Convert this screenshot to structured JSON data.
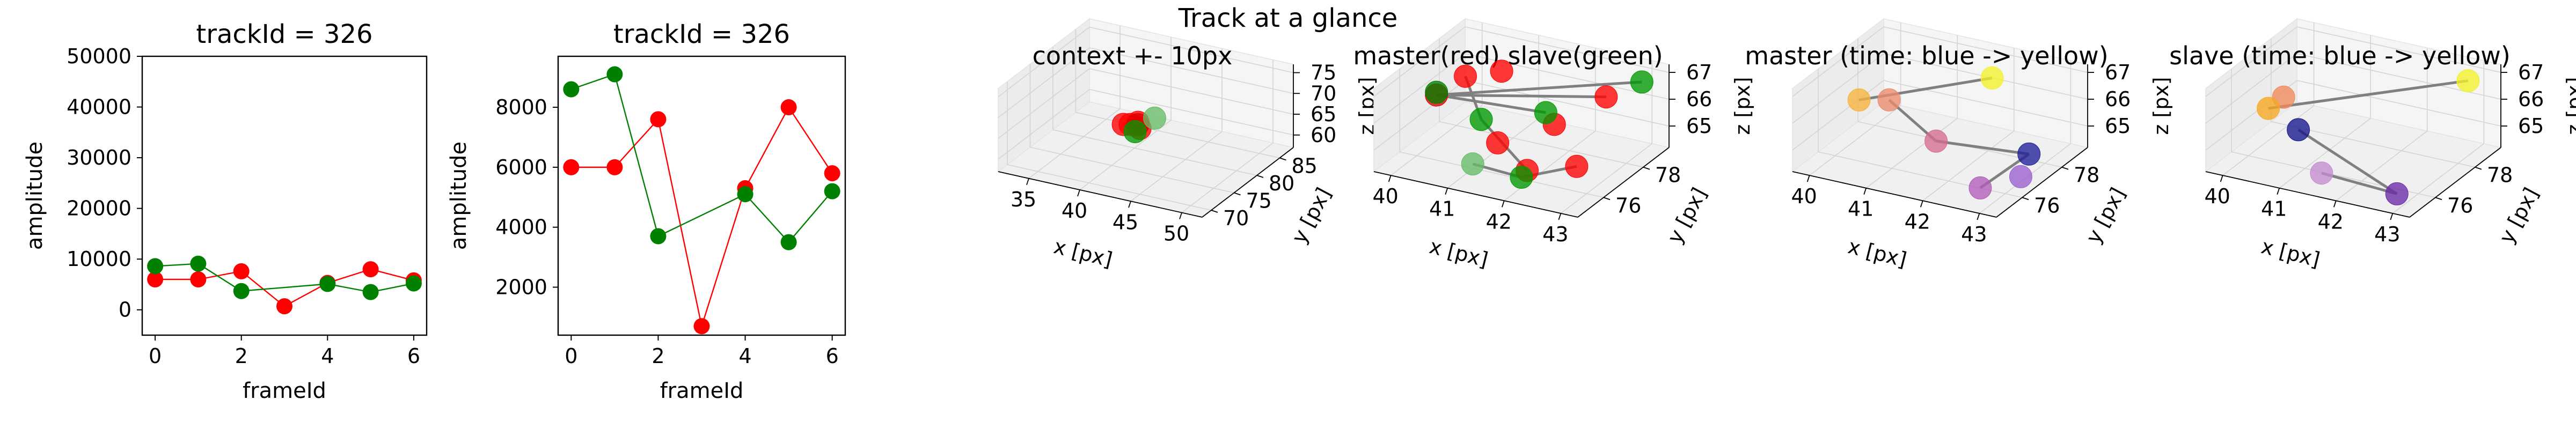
{
  "figure": {
    "title": "Track at a glance"
  },
  "chart_data": [
    {
      "type": "line",
      "title": "trackId = 326",
      "xlabel": "frameId",
      "ylabel": "amplitude",
      "xlim": [
        -0.3,
        6.3
      ],
      "ylim": [
        -5000,
        50000
      ],
      "xticks": [
        0,
        2,
        4,
        6
      ],
      "yticks": [
        0,
        10000,
        20000,
        30000,
        40000,
        50000
      ],
      "grid": false,
      "series": [
        {
          "color": "#ff0000",
          "x": [
            0,
            1,
            2,
            3,
            4,
            5,
            6
          ],
          "y": [
            6000,
            6000,
            7600,
            700,
            5300,
            8000,
            5800
          ]
        },
        {
          "color": "#008000",
          "x": [
            0,
            1,
            2,
            4,
            5,
            6
          ],
          "y": [
            8600,
            9100,
            3700,
            5100,
            3500,
            5200
          ]
        }
      ]
    },
    {
      "type": "line",
      "title": "trackId = 326",
      "xlabel": "frameId",
      "ylabel": "amplitude",
      "xlim": [
        -0.3,
        6.3
      ],
      "ylim": [
        400,
        9700
      ],
      "xticks": [
        0,
        2,
        4,
        6
      ],
      "yticks": [
        2000,
        4000,
        6000,
        8000
      ],
      "grid": false,
      "series": [
        {
          "color": "#ff0000",
          "x": [
            0,
            1,
            2,
            3,
            4,
            5,
            6
          ],
          "y": [
            6000,
            6000,
            7600,
            700,
            5300,
            8000,
            5800
          ]
        },
        {
          "color": "#008000",
          "x": [
            0,
            1,
            2,
            4,
            5,
            6
          ],
          "y": [
            8600,
            9100,
            3700,
            5100,
            3500,
            5200
          ]
        }
      ]
    },
    {
      "type": "scatter",
      "projection": "3d",
      "title": "context +- 10px",
      "xlabel": "x [px]",
      "ylabel": "y [px]",
      "zlabel": "z [px]",
      "xlim": [
        32,
        52
      ],
      "ylim": [
        68,
        88
      ],
      "zlim": [
        57,
        77
      ],
      "xticks": [
        35,
        40,
        45,
        50
      ],
      "yticks": [
        70,
        75,
        80,
        85
      ],
      "zticks": [
        60,
        65,
        70,
        75
      ],
      "points": [
        {
          "x": 40.6,
          "y": 76.2,
          "z": 66.2,
          "color": "#ff0000"
        },
        {
          "x": 41.0,
          "y": 76.8,
          "z": 65.9,
          "color": "#ff0000"
        },
        {
          "x": 41.6,
          "y": 77.2,
          "z": 66.4,
          "color": "#ff0000"
        },
        {
          "x": 42.1,
          "y": 76.5,
          "z": 65.8,
          "color": "#ff0000"
        },
        {
          "x": 41.4,
          "y": 77.6,
          "z": 65.4,
          "color": "#dd0000"
        },
        {
          "x": 42.6,
          "y": 78.6,
          "z": 66.8,
          "color": "#66bb66"
        },
        {
          "x": 41.8,
          "y": 76.1,
          "z": 65.2,
          "color": "#009900"
        }
      ],
      "segments": [
        [
          {
            "x": 40.6,
            "y": 76.2,
            "z": 66.2
          },
          {
            "x": 41.6,
            "y": 77.2,
            "z": 66.4
          }
        ],
        [
          {
            "x": 41.6,
            "y": 77.2,
            "z": 66.4
          },
          {
            "x": 41.0,
            "y": 76.8,
            "z": 65.9
          }
        ],
        [
          {
            "x": 41.0,
            "y": 76.8,
            "z": 65.9
          },
          {
            "x": 42.1,
            "y": 76.5,
            "z": 65.8
          }
        ]
      ]
    },
    {
      "type": "scatter",
      "projection": "3d",
      "title": "master(red) slave(green)",
      "xlabel": "x [px]",
      "ylabel": "y [px]",
      "zlabel": "z [px]",
      "xlim": [
        39.7,
        43.3
      ],
      "ylim": [
        74.7,
        79.3
      ],
      "zlim": [
        64.2,
        67.3
      ],
      "xticks": [
        40,
        41,
        42,
        43
      ],
      "yticks": [
        76,
        78
      ],
      "zticks": [
        65,
        66,
        67
      ],
      "points": [
        {
          "x": 40.3,
          "y": 77.6,
          "z": 66.4,
          "color": "#ff0000"
        },
        {
          "x": 40.8,
          "y": 78.0,
          "z": 66.6,
          "color": "#ff0000"
        },
        {
          "x": 42.4,
          "y": 78.7,
          "z": 66.0,
          "color": "#ff0000"
        },
        {
          "x": 41.5,
          "y": 75.8,
          "z": 65.5,
          "color": "#ff0000"
        },
        {
          "x": 42.3,
          "y": 75.0,
          "z": 65.3,
          "color": "#ff0000"
        },
        {
          "x": 43.0,
          "y": 75.5,
          "z": 65.5,
          "color": "#ff0000"
        },
        {
          "x": 41.8,
          "y": 77.8,
          "z": 65.2,
          "color": "#ff0000"
        },
        {
          "x": 40.0,
          "y": 77.0,
          "z": 65.9,
          "color": "#dd0000"
        },
        {
          "x": 43.1,
          "y": 78.5,
          "z": 67.0,
          "color": "#009900"
        },
        {
          "x": 42.0,
          "y": 76.8,
          "z": 66.3,
          "color": "#009900"
        },
        {
          "x": 41.0,
          "y": 76.4,
          "z": 65.8,
          "color": "#009900"
        },
        {
          "x": 42.2,
          "y": 75.0,
          "z": 65.0,
          "color": "#009900"
        },
        {
          "x": 41.2,
          "y": 75.4,
          "z": 64.8,
          "color": "#66bb66"
        },
        {
          "x": 40.0,
          "y": 77.0,
          "z": 66.0,
          "color": "#008000"
        }
      ],
      "segments": [
        [
          {
            "x": 40.0,
            "y": 77.0,
            "z": 65.9
          },
          {
            "x": 42.4,
            "y": 78.7,
            "z": 66.0
          }
        ],
        [
          {
            "x": 40.0,
            "y": 77.0,
            "z": 65.9
          },
          {
            "x": 43.1,
            "y": 78.5,
            "z": 67.0
          }
        ],
        [
          {
            "x": 40.0,
            "y": 77.0,
            "z": 65.9
          },
          {
            "x": 42.0,
            "y": 76.8,
            "z": 66.3
          }
        ],
        [
          {
            "x": 40.3,
            "y": 77.6,
            "z": 66.4
          },
          {
            "x": 41.0,
            "y": 76.4,
            "z": 65.8
          }
        ],
        [
          {
            "x": 41.0,
            "y": 76.4,
            "z": 65.8
          },
          {
            "x": 42.3,
            "y": 75.0,
            "z": 65.3
          }
        ],
        [
          {
            "x": 41.2,
            "y": 75.4,
            "z": 64.8
          },
          {
            "x": 42.2,
            "y": 75.0,
            "z": 65.0
          }
        ],
        [
          {
            "x": 42.2,
            "y": 75.0,
            "z": 65.0
          },
          {
            "x": 43.0,
            "y": 75.5,
            "z": 65.5
          }
        ]
      ]
    },
    {
      "type": "scatter",
      "projection": "3d",
      "title": "master (time: blue -> yellow)",
      "xlabel": "x [px]",
      "ylabel": "y [px]",
      "zlabel": "z [px]",
      "xlim": [
        39.7,
        43.3
      ],
      "ylim": [
        74.7,
        79.3
      ],
      "zlim": [
        64.2,
        67.3
      ],
      "xticks": [
        40,
        41,
        42,
        43
      ],
      "yticks": [
        76,
        78
      ],
      "zticks": [
        65,
        66,
        67
      ],
      "points": [
        {
          "x": 43.0,
          "y": 77.2,
          "z": 65.0,
          "color": "#1f1f99"
        },
        {
          "x": 43.1,
          "y": 76.5,
          "z": 64.6,
          "color": "#9a5fd0"
        },
        {
          "x": 42.7,
          "y": 75.6,
          "z": 64.5,
          "color": "#b15cb8"
        },
        {
          "x": 41.5,
          "y": 76.8,
          "z": 65.0,
          "color": "#d66a92"
        },
        {
          "x": 40.6,
          "y": 77.0,
          "z": 66.0,
          "color": "#ec8a6c"
        },
        {
          "x": 40.0,
          "y": 77.2,
          "z": 65.6,
          "color": "#f7b33c"
        },
        {
          "x": 42.0,
          "y": 78.2,
          "z": 66.8,
          "color": "#f2f22a"
        }
      ],
      "segments": [
        [
          {
            "x": 40.0,
            "y": 77.2,
            "z": 65.6
          },
          {
            "x": 42.0,
            "y": 78.2,
            "z": 66.8
          }
        ],
        [
          {
            "x": 40.6,
            "y": 77.0,
            "z": 66.0
          },
          {
            "x": 41.5,
            "y": 76.8,
            "z": 65.0
          }
        ],
        [
          {
            "x": 41.5,
            "y": 76.8,
            "z": 65.0
          },
          {
            "x": 43.0,
            "y": 77.2,
            "z": 65.0
          }
        ],
        [
          {
            "x": 43.0,
            "y": 77.2,
            "z": 65.0
          },
          {
            "x": 42.7,
            "y": 75.6,
            "z": 64.5
          }
        ]
      ]
    },
    {
      "type": "scatter",
      "projection": "3d",
      "title": "slave (time: blue -> yellow)",
      "xlabel": "x [px]",
      "ylabel": "y [px]",
      "zlabel": "z [px]",
      "xlim": [
        39.7,
        43.3
      ],
      "ylim": [
        74.7,
        79.3
      ],
      "zlim": [
        64.2,
        67.3
      ],
      "xticks": [
        40,
        41,
        42,
        43
      ],
      "yticks": [
        76,
        78
      ],
      "zticks": [
        65,
        66,
        67
      ],
      "points": [
        {
          "x": 40.6,
          "y": 76.8,
          "z": 65.0,
          "color": "#14148c"
        },
        {
          "x": 42.9,
          "y": 75.2,
          "z": 64.6,
          "color": "#6a2aa8"
        },
        {
          "x": 41.5,
          "y": 75.4,
          "z": 64.6,
          "color": "#c48cd0"
        },
        {
          "x": 40.2,
          "y": 77.2,
          "z": 65.8,
          "color": "#f08a5a"
        },
        {
          "x": 40.0,
          "y": 77.0,
          "z": 65.4,
          "color": "#f7a820"
        },
        {
          "x": 43.0,
          "y": 78.5,
          "z": 67.0,
          "color": "#f2f22a"
        }
      ],
      "segments": [
        [
          {
            "x": 40.0,
            "y": 77.0,
            "z": 65.4
          },
          {
            "x": 43.0,
            "y": 78.5,
            "z": 67.0
          }
        ],
        [
          {
            "x": 40.6,
            "y": 76.8,
            "z": 65.0
          },
          {
            "x": 42.9,
            "y": 75.2,
            "z": 64.6
          }
        ],
        [
          {
            "x": 41.5,
            "y": 75.4,
            "z": 64.6
          },
          {
            "x": 42.9,
            "y": 75.2,
            "z": 64.6
          }
        ]
      ]
    }
  ]
}
